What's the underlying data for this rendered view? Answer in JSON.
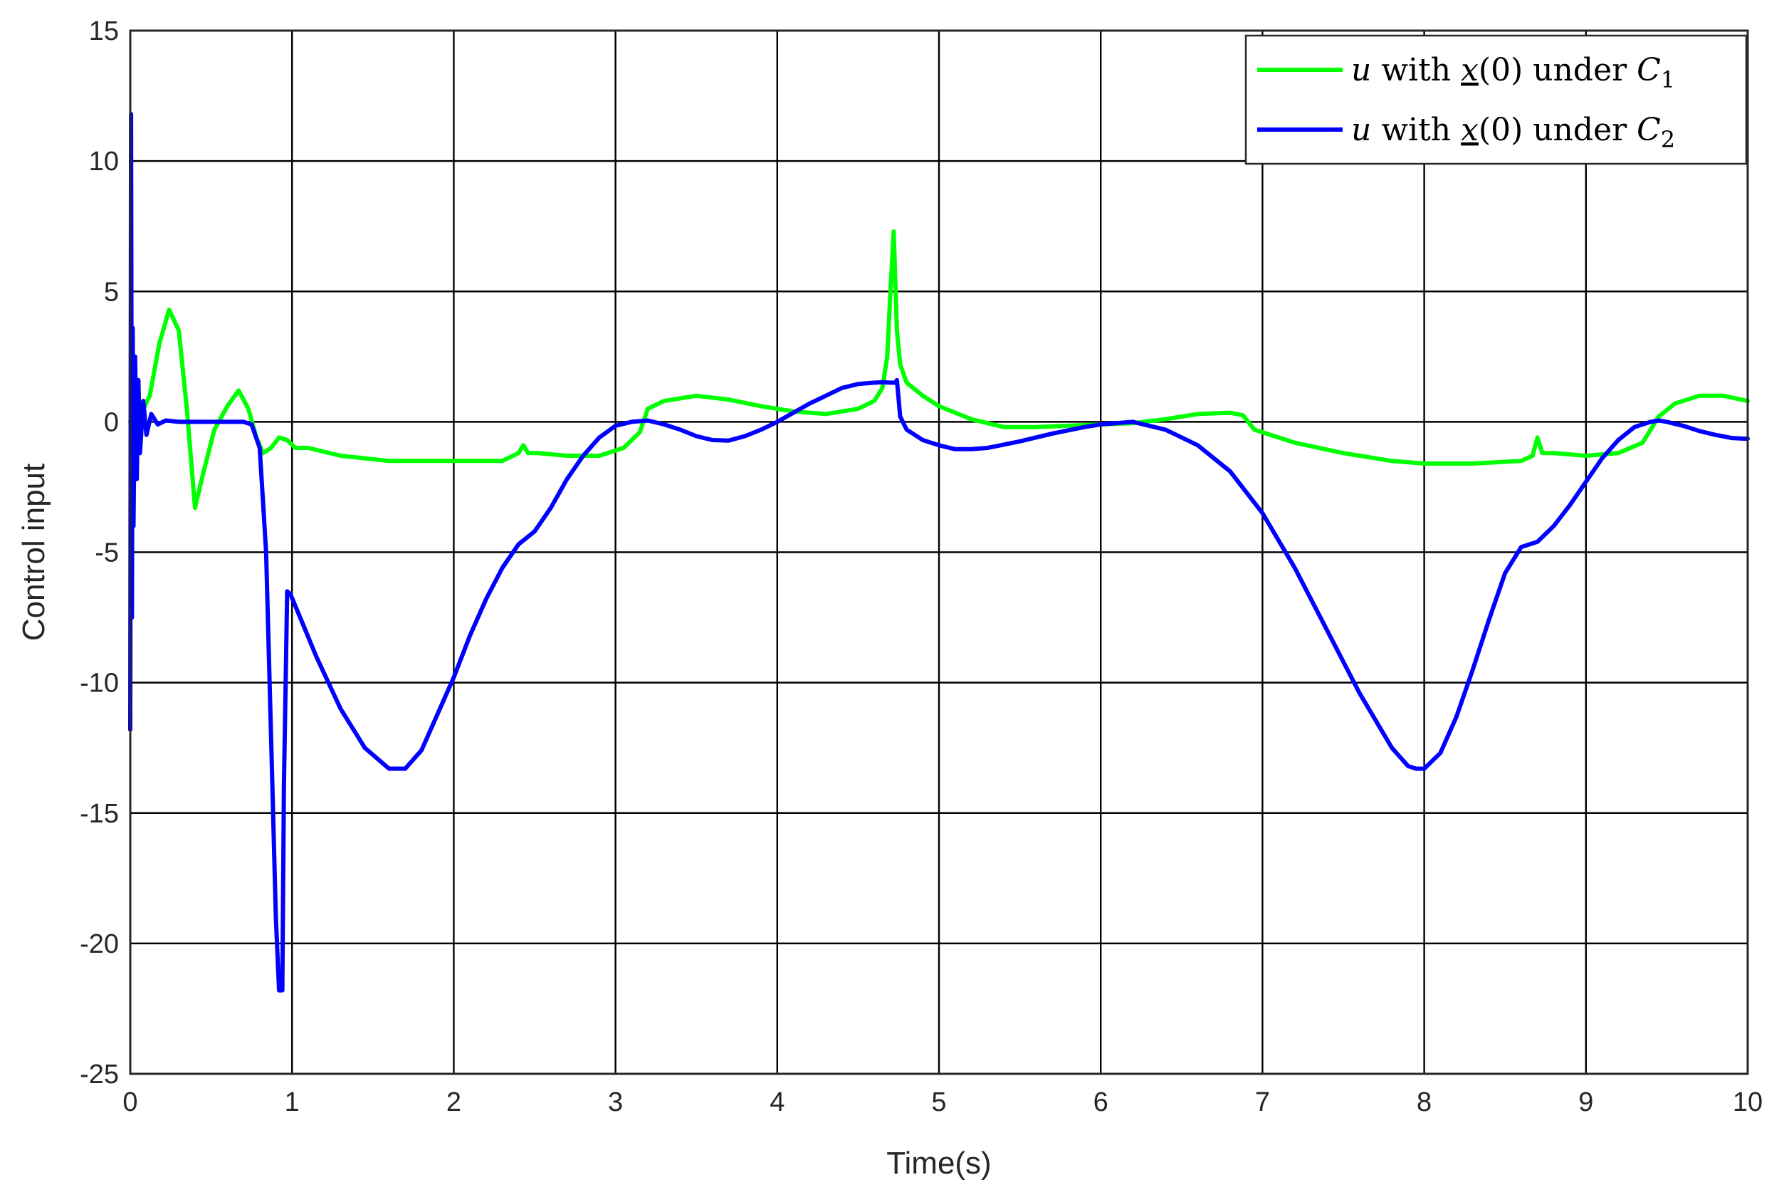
{
  "chart_data": {
    "type": "line",
    "xlabel": "Time(s)",
    "ylabel": "Control input",
    "xlim": [
      0,
      10
    ],
    "ylim": [
      -25,
      15
    ],
    "xticks": [
      0,
      1,
      2,
      3,
      4,
      5,
      6,
      7,
      8,
      9,
      10
    ],
    "yticks": [
      -25,
      -20,
      -15,
      -10,
      -5,
      0,
      5,
      10,
      15
    ],
    "grid": true,
    "legend_position": "top-right",
    "series": [
      {
        "name": "u with x(0) under C1",
        "legend": {
          "var": "u",
          "mid": " with ",
          "xvar": "x",
          "arg": "(0)",
          "under": " under ",
          "cvar": "C",
          "sub": "1"
        },
        "color": "#00ff00",
        "x": [
          0,
          0.05,
          0.12,
          0.18,
          0.24,
          0.3,
          0.35,
          0.4,
          0.45,
          0.52,
          0.6,
          0.67,
          0.73,
          0.78,
          0.82,
          0.87,
          0.92,
          0.97,
          1.02,
          1.1,
          1.3,
          1.6,
          2.0,
          2.3,
          2.4,
          2.43,
          2.46,
          2.52,
          2.7,
          2.9,
          3.05,
          3.15,
          3.2,
          3.3,
          3.5,
          3.7,
          3.9,
          4.1,
          4.3,
          4.5,
          4.6,
          4.65,
          4.68,
          4.7,
          4.72,
          4.74,
          4.76,
          4.8,
          4.9,
          5.0,
          5.2,
          5.4,
          5.6,
          5.8,
          6.0,
          6.2,
          6.4,
          6.6,
          6.8,
          6.88,
          6.95,
          7.2,
          7.5,
          7.8,
          8.0,
          8.3,
          8.6,
          8.67,
          8.7,
          8.73,
          8.8,
          9.0,
          9.2,
          9.35,
          9.45,
          9.55,
          9.7,
          9.85,
          10.0
        ],
        "y": [
          0,
          0.1,
          1.0,
          3.0,
          4.3,
          3.5,
          0.5,
          -3.3,
          -2.0,
          -0.3,
          0.6,
          1.2,
          0.5,
          -0.6,
          -1.2,
          -1.0,
          -0.6,
          -0.7,
          -1.0,
          -1.0,
          -1.3,
          -1.5,
          -1.5,
          -1.5,
          -1.2,
          -0.9,
          -1.2,
          -1.2,
          -1.3,
          -1.3,
          -1.0,
          -0.4,
          0.5,
          0.8,
          1.0,
          0.85,
          0.6,
          0.4,
          0.3,
          0.5,
          0.8,
          1.3,
          2.5,
          5.0,
          7.3,
          3.5,
          2.2,
          1.5,
          1.0,
          0.6,
          0.1,
          -0.2,
          -0.2,
          -0.15,
          -0.1,
          -0.05,
          0.1,
          0.3,
          0.35,
          0.25,
          -0.3,
          -0.8,
          -1.2,
          -1.5,
          -1.6,
          -1.6,
          -1.5,
          -1.3,
          -0.6,
          -1.2,
          -1.2,
          -1.3,
          -1.2,
          -0.8,
          0.2,
          0.7,
          1.0,
          1.0,
          0.8
        ]
      },
      {
        "name": "u with x(0) under C2",
        "legend": {
          "var": "u",
          "mid": " with ",
          "xvar": "x",
          "arg": "(0)",
          "under": " under ",
          "cvar": "C",
          "sub": "2"
        },
        "color": "#0000ff",
        "x": [
          0,
          0.005,
          0.01,
          0.015,
          0.02,
          0.03,
          0.04,
          0.05,
          0.06,
          0.08,
          0.1,
          0.13,
          0.17,
          0.22,
          0.3,
          0.4,
          0.5,
          0.6,
          0.7,
          0.75,
          0.8,
          0.84,
          0.87,
          0.9,
          0.92,
          0.94,
          0.95,
          0.97,
          0.99,
          1.05,
          1.15,
          1.3,
          1.45,
          1.6,
          1.7,
          1.8,
          1.9,
          2.0,
          2.1,
          2.2,
          2.3,
          2.4,
          2.5,
          2.6,
          2.7,
          2.8,
          2.9,
          3.0,
          3.1,
          3.2,
          3.3,
          3.4,
          3.5,
          3.6,
          3.7,
          3.8,
          3.9,
          4.0,
          4.1,
          4.2,
          4.3,
          4.4,
          4.5,
          4.6,
          4.65,
          4.7,
          4.73,
          4.74,
          4.76,
          4.8,
          4.9,
          5.0,
          5.1,
          5.2,
          5.3,
          5.5,
          5.7,
          5.9,
          6.0,
          6.2,
          6.4,
          6.6,
          6.8,
          7.0,
          7.2,
          7.4,
          7.6,
          7.8,
          7.9,
          7.95,
          8.0,
          8.1,
          8.2,
          8.3,
          8.4,
          8.5,
          8.6,
          8.7,
          8.8,
          8.9,
          9.0,
          9.1,
          9.2,
          9.3,
          9.4,
          9.45,
          9.5,
          9.6,
          9.7,
          9.8,
          9.9,
          10.0
        ],
        "y": [
          -11.8,
          11.8,
          -7.5,
          3.6,
          -4.0,
          2.5,
          -2.2,
          1.6,
          -1.2,
          0.8,
          -0.5,
          0.3,
          -0.1,
          0.05,
          0,
          0,
          0,
          0,
          0,
          -0.1,
          -1.0,
          -5.0,
          -12.0,
          -19.0,
          -21.8,
          -21.8,
          -14.0,
          -6.5,
          -6.6,
          -7.5,
          -9.0,
          -11.0,
          -12.5,
          -13.3,
          -13.3,
          -12.6,
          -11.2,
          -9.8,
          -8.2,
          -6.8,
          -5.6,
          -4.7,
          -4.2,
          -3.3,
          -2.2,
          -1.3,
          -0.6,
          -0.15,
          0,
          0.05,
          -0.1,
          -0.3,
          -0.55,
          -0.7,
          -0.72,
          -0.55,
          -0.3,
          0,
          0.35,
          0.7,
          1.0,
          1.3,
          1.45,
          1.5,
          1.52,
          1.5,
          1.5,
          1.6,
          0.2,
          -0.3,
          -0.7,
          -0.9,
          -1.05,
          -1.05,
          -1.0,
          -0.75,
          -0.45,
          -0.2,
          -0.1,
          0,
          -0.3,
          -0.9,
          -1.9,
          -3.5,
          -5.6,
          -8.0,
          -10.4,
          -12.5,
          -13.2,
          -13.3,
          -13.3,
          -12.7,
          -11.3,
          -9.5,
          -7.6,
          -5.8,
          -4.8,
          -4.6,
          -4.0,
          -3.2,
          -2.3,
          -1.4,
          -0.7,
          -0.2,
          0,
          0.05,
          0,
          -0.15,
          -0.35,
          -0.5,
          -0.62,
          -0.65
        ]
      }
    ]
  }
}
